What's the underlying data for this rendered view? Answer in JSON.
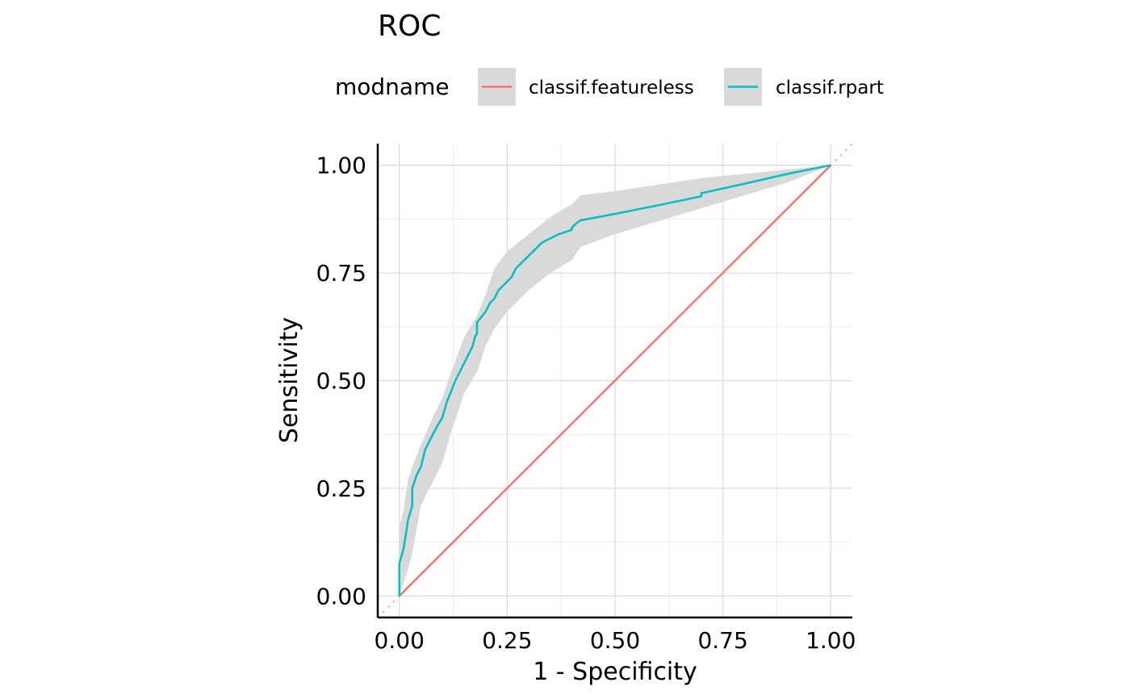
{
  "chart_data": {
    "type": "line",
    "title": "ROC",
    "xlabel": "1 - Specificity",
    "ylabel": "Sensitivity",
    "xlim": [
      -0.05,
      1.05
    ],
    "ylim": [
      -0.05,
      1.05
    ],
    "x_ticks": [
      "0.00",
      "0.25",
      "0.50",
      "0.75",
      "1.00"
    ],
    "y_ticks": [
      "0.00",
      "0.25",
      "0.50",
      "0.75",
      "1.00"
    ],
    "x_tick_values": [
      0,
      0.25,
      0.5,
      0.75,
      1
    ],
    "y_tick_values": [
      0,
      0.25,
      0.5,
      0.75,
      1
    ],
    "grid": true,
    "legend": {
      "title": "modname",
      "position": "top",
      "entries": [
        "classif.featureless",
        "classif.rpart"
      ]
    },
    "diagonal_reference": true,
    "series": [
      {
        "name": "classif.featureless",
        "color": "#F8766D",
        "x": [
          0,
          1
        ],
        "y": [
          0,
          1
        ]
      },
      {
        "name": "classif.rpart",
        "color": "#00BFC4",
        "x": [
          0,
          0,
          0.01,
          0.02,
          0.03,
          0.03,
          0.04,
          0.05,
          0.055,
          0.06,
          0.08,
          0.1,
          0.11,
          0.13,
          0.15,
          0.16,
          0.17,
          0.175,
          0.18,
          0.18,
          0.2,
          0.21,
          0.22,
          0.23,
          0.24,
          0.25,
          0.26,
          0.27,
          0.28,
          0.3,
          0.32,
          0.33,
          0.35,
          0.37,
          0.4,
          0.4,
          0.41,
          0.42,
          0.5,
          0.6,
          0.7,
          0.7,
          0.8,
          0.9,
          1.0
        ],
        "y": [
          0,
          0.075,
          0.11,
          0.175,
          0.21,
          0.25,
          0.28,
          0.3,
          0.32,
          0.34,
          0.38,
          0.415,
          0.45,
          0.5,
          0.54,
          0.56,
          0.58,
          0.6,
          0.61,
          0.635,
          0.66,
          0.68,
          0.69,
          0.71,
          0.72,
          0.73,
          0.74,
          0.76,
          0.77,
          0.79,
          0.81,
          0.82,
          0.83,
          0.84,
          0.85,
          0.855,
          0.865,
          0.872,
          0.887,
          0.907,
          0.928,
          0.935,
          0.957,
          0.98,
          1.0
        ]
      }
    ],
    "confidence_band": {
      "series": "classif.rpart",
      "color": "#D9D9D9",
      "x": [
        0,
        0.01,
        0.02,
        0.03,
        0.05,
        0.08,
        0.1,
        0.12,
        0.15,
        0.18,
        0.2,
        0.22,
        0.25,
        0.3,
        0.35,
        0.4,
        0.42,
        0.5,
        0.6,
        0.7,
        0.8,
        0.9,
        1.0
      ],
      "lower": [
        0,
        0.03,
        0.06,
        0.1,
        0.21,
        0.27,
        0.31,
        0.38,
        0.47,
        0.52,
        0.58,
        0.62,
        0.66,
        0.71,
        0.75,
        0.78,
        0.81,
        0.84,
        0.87,
        0.9,
        0.93,
        0.96,
        1.0
      ],
      "upper": [
        0.16,
        0.2,
        0.27,
        0.3,
        0.35,
        0.42,
        0.46,
        0.52,
        0.6,
        0.65,
        0.7,
        0.76,
        0.8,
        0.84,
        0.88,
        0.91,
        0.93,
        0.94,
        0.955,
        0.97,
        0.98,
        0.99,
        1.0
      ]
    }
  }
}
